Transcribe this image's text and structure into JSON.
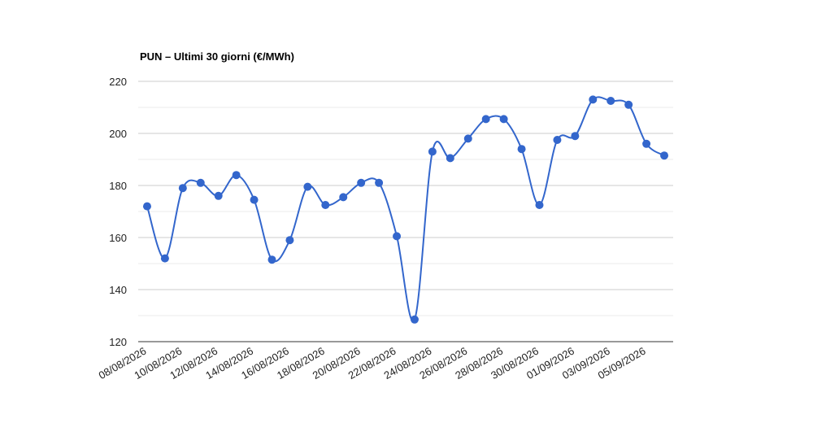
{
  "chart_data": {
    "type": "line",
    "title": "PUN – Ultimi 30 giorni (€/MWh)",
    "categories": [
      "08/08/2026",
      null,
      "10/08/2026",
      null,
      "12/08/2026",
      null,
      "14/08/2026",
      null,
      "16/08/2026",
      null,
      "18/08/2026",
      null,
      "20/08/2026",
      null,
      "22/08/2026",
      null,
      "24/08/2026",
      null,
      "26/08/2026",
      null,
      "28/08/2026",
      null,
      "30/08/2026",
      null,
      "01/09/2026",
      null,
      "03/09/2026",
      null,
      "05/09/2026",
      null
    ],
    "series": [
      {
        "color": "#3366cc",
        "values": [
          172,
          152,
          179,
          181,
          176,
          184,
          174.5,
          151.5,
          159,
          179.5,
          172.5,
          175.5,
          181,
          181,
          160.5,
          128.5,
          193,
          190.5,
          198,
          205.5,
          205.5,
          194,
          172.5,
          197.5,
          199,
          213,
          212.5,
          211,
          196,
          191.5
        ]
      }
    ],
    "ylim": [
      120,
      220
    ],
    "yticks": [
      120,
      140,
      160,
      180,
      200,
      220
    ],
    "grid": true
  }
}
